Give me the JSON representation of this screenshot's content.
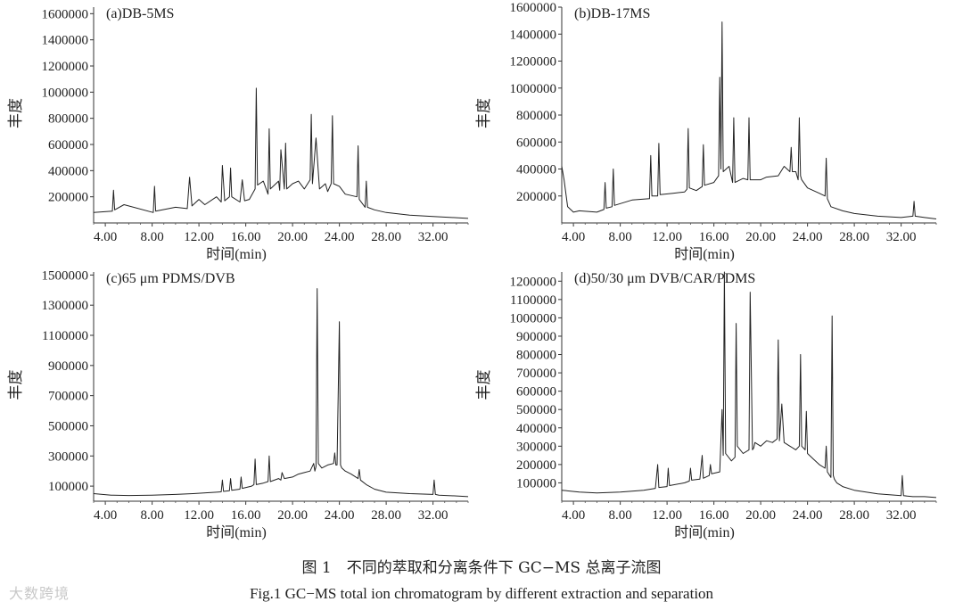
{
  "figure": {
    "caption_cn": "图 1　不同的萃取和分离条件下 GC−MS 总离子流图",
    "caption_en": "Fig.1    GC−MS total ion chromatogram by different extraction and separation",
    "watermark": "大数跨境"
  },
  "chart_data": [
    {
      "type": "line",
      "title": "(a)DB-5MS",
      "xlabel": "时间(min)",
      "ylabel": "丰度",
      "xlim": [
        3.0,
        35.0
      ],
      "ylim": [
        0,
        1650000
      ],
      "xticks": [
        "4.00",
        "8.00",
        "12.00",
        "16.00",
        "20.00",
        "24.00",
        "28.00",
        "32.00"
      ],
      "xtick_values": [
        4,
        8,
        12,
        16,
        20,
        24,
        28,
        32
      ],
      "yticks": [
        "200000",
        "400000",
        "600000",
        "800000",
        "1000000",
        "1200000",
        "1400000",
        "1600000"
      ],
      "ytick_values": [
        200000,
        400000,
        600000,
        800000,
        1000000,
        1200000,
        1400000,
        1600000
      ],
      "grid": false,
      "series": [
        {
          "color": "#222222",
          "x": [
            3.0,
            4.6,
            4.7,
            4.8,
            5.6,
            8.1,
            8.2,
            8.3,
            10.0,
            11.0,
            11.2,
            11.4,
            12.0,
            12.5,
            13.5,
            13.9,
            14.0,
            14.2,
            14.6,
            14.7,
            14.8,
            15.5,
            15.7,
            15.9,
            16.3,
            16.8,
            16.9,
            17.0,
            17.5,
            17.9,
            18.0,
            18.1,
            18.8,
            18.9,
            19.0,
            19.3,
            19.4,
            19.5,
            20.0,
            20.5,
            21.0,
            21.5,
            21.6,
            21.7,
            22.0,
            22.3,
            22.8,
            23.0,
            23.3,
            23.4,
            23.5,
            24.0,
            24.5,
            25.5,
            25.6,
            25.7,
            26.2,
            26.3,
            26.4,
            27.0,
            28.0,
            30.0,
            32.0,
            34.0,
            35.0
          ],
          "y": [
            80000,
            90000,
            250000,
            100000,
            140000,
            80000,
            280000,
            90000,
            120000,
            110000,
            350000,
            130000,
            180000,
            140000,
            200000,
            160000,
            440000,
            170000,
            200000,
            420000,
            200000,
            160000,
            330000,
            170000,
            180000,
            260000,
            1030000,
            290000,
            320000,
            220000,
            720000,
            260000,
            320000,
            250000,
            560000,
            260000,
            610000,
            260000,
            300000,
            320000,
            260000,
            330000,
            830000,
            300000,
            650000,
            260000,
            300000,
            240000,
            300000,
            820000,
            300000,
            280000,
            220000,
            200000,
            590000,
            180000,
            120000,
            320000,
            120000,
            100000,
            80000,
            60000,
            50000,
            40000,
            35000
          ]
        }
      ]
    },
    {
      "type": "line",
      "title": "(b)DB-17MS",
      "xlabel": "时间(min)",
      "ylabel": "丰度",
      "xlim": [
        3.0,
        35.0
      ],
      "ylim": [
        0,
        1600000
      ],
      "xticks": [
        "4.00",
        "8.00",
        "12.00",
        "16.00",
        "20.00",
        "24.00",
        "28.00",
        "32.00"
      ],
      "xtick_values": [
        4,
        8,
        12,
        16,
        20,
        24,
        28,
        32
      ],
      "yticks": [
        "200000",
        "400000",
        "600000",
        "800000",
        "1000000",
        "1200000",
        "1400000",
        "1600000"
      ],
      "ytick_values": [
        200000,
        400000,
        600000,
        800000,
        1000000,
        1200000,
        1400000,
        1600000
      ],
      "grid": false,
      "series": [
        {
          "color": "#222222",
          "x": [
            3.0,
            3.2,
            3.5,
            4.0,
            4.5,
            6.0,
            6.6,
            6.7,
            6.8,
            7.3,
            7.4,
            7.5,
            9.0,
            10.5,
            10.6,
            10.7,
            11.2,
            11.3,
            11.4,
            12.5,
            13.5,
            13.7,
            13.8,
            13.9,
            14.5,
            15.0,
            15.1,
            15.2,
            16.0,
            16.4,
            16.5,
            16.6,
            16.7,
            16.8,
            17.3,
            17.6,
            17.7,
            17.8,
            18.5,
            18.9,
            19.0,
            19.1,
            20.0,
            20.5,
            21.5,
            22.0,
            22.5,
            22.6,
            22.7,
            23.0,
            23.2,
            23.3,
            23.4,
            23.5,
            24.0,
            25.0,
            25.5,
            25.6,
            25.7,
            26.0,
            27.0,
            28.0,
            30.0,
            32.0,
            33.0,
            33.1,
            33.2,
            34.0,
            35.0
          ],
          "y": [
            420000,
            320000,
            120000,
            80000,
            90000,
            80000,
            100000,
            300000,
            110000,
            120000,
            400000,
            130000,
            170000,
            180000,
            500000,
            200000,
            200000,
            590000,
            210000,
            220000,
            230000,
            250000,
            700000,
            260000,
            240000,
            270000,
            580000,
            280000,
            300000,
            350000,
            1080000,
            400000,
            1490000,
            380000,
            420000,
            300000,
            780000,
            300000,
            330000,
            320000,
            780000,
            320000,
            320000,
            340000,
            350000,
            420000,
            380000,
            560000,
            380000,
            380000,
            320000,
            780000,
            350000,
            320000,
            260000,
            220000,
            200000,
            480000,
            180000,
            120000,
            90000,
            70000,
            50000,
            40000,
            50000,
            160000,
            50000,
            40000,
            30000
          ]
        }
      ]
    },
    {
      "type": "line",
      "title": "(c)65 μm PDMS/DVB",
      "xlabel": "时间(min)",
      "ylabel": "丰度",
      "xlim": [
        3.0,
        35.0
      ],
      "ylim": [
        0,
        1520000
      ],
      "xticks": [
        "4.00",
        "8.00",
        "12.00",
        "16.00",
        "20.00",
        "24.00",
        "28.00",
        "32.00"
      ],
      "xtick_values": [
        4,
        8,
        12,
        16,
        20,
        24,
        28,
        32
      ],
      "yticks": [
        "100000",
        "300000",
        "500000",
        "700000",
        "900000",
        "1100000",
        "1300000",
        "1500000"
      ],
      "ytick_values": [
        100000,
        300000,
        500000,
        700000,
        900000,
        1100000,
        1300000,
        1500000
      ],
      "grid": false,
      "series": [
        {
          "color": "#222222",
          "x": [
            3.0,
            4.5,
            6.0,
            8.0,
            10.0,
            11.5,
            13.5,
            13.9,
            14.0,
            14.1,
            14.6,
            14.7,
            14.8,
            15.5,
            15.6,
            15.7,
            16.5,
            16.7,
            16.8,
            16.9,
            17.5,
            17.9,
            18.0,
            18.1,
            18.8,
            19.0,
            19.1,
            19.3,
            20.0,
            20.5,
            21.0,
            21.5,
            21.8,
            21.9,
            22.0,
            22.1,
            22.2,
            22.5,
            23.0,
            23.5,
            23.6,
            23.7,
            23.8,
            24.0,
            24.1,
            24.2,
            24.5,
            25.0,
            25.6,
            25.7,
            25.8,
            26.3,
            27.0,
            28.0,
            30.0,
            32.0,
            32.1,
            32.2,
            32.5,
            34.0,
            35.0
          ],
          "y": [
            50000,
            40000,
            38000,
            40000,
            45000,
            50000,
            60000,
            62000,
            140000,
            65000,
            70000,
            150000,
            72000,
            80000,
            160000,
            85000,
            100000,
            110000,
            280000,
            110000,
            120000,
            130000,
            300000,
            130000,
            150000,
            140000,
            190000,
            150000,
            160000,
            180000,
            190000,
            200000,
            250000,
            200000,
            230000,
            1410000,
            250000,
            220000,
            240000,
            250000,
            320000,
            240000,
            240000,
            1190000,
            240000,
            220000,
            200000,
            180000,
            150000,
            210000,
            140000,
            110000,
            80000,
            60000,
            50000,
            45000,
            140000,
            45000,
            40000,
            35000,
            30000
          ]
        }
      ]
    },
    {
      "type": "line",
      "title": "(d)50/30 μm DVB/CAR/PDMS",
      "xlabel": "时间(min)",
      "ylabel": "丰度",
      "xlim": [
        3.0,
        35.0
      ],
      "ylim": [
        0,
        1250000
      ],
      "xticks": [
        "4.00",
        "8.00",
        "12.00",
        "16.00",
        "20.00",
        "24.00",
        "28.00",
        "32.00"
      ],
      "xtick_values": [
        4,
        8,
        12,
        16,
        20,
        24,
        28,
        32
      ],
      "yticks": [
        "100000",
        "200000",
        "300000",
        "400000",
        "500000",
        "600000",
        "700000",
        "800000",
        "900000",
        "1000000",
        "1100000",
        "1200000"
      ],
      "ytick_values": [
        100000,
        200000,
        300000,
        400000,
        500000,
        600000,
        700000,
        800000,
        900000,
        1000000,
        1100000,
        1200000
      ],
      "grid": false,
      "series": [
        {
          "color": "#222222",
          "x": [
            3.0,
            4.5,
            6.0,
            8.0,
            10.0,
            11.0,
            11.2,
            11.3,
            12.0,
            12.1,
            12.2,
            13.5,
            13.9,
            14.0,
            14.1,
            14.8,
            15.0,
            15.1,
            15.6,
            15.7,
            15.8,
            16.5,
            16.7,
            16.8,
            16.9,
            17.0,
            17.5,
            17.8,
            17.9,
            18.0,
            18.5,
            19.0,
            19.1,
            19.3,
            19.4,
            19.5,
            20.0,
            20.5,
            21.0,
            21.4,
            21.5,
            21.6,
            21.8,
            22.0,
            22.5,
            23.0,
            23.3,
            23.4,
            23.5,
            23.8,
            23.9,
            24.0,
            24.5,
            25.0,
            25.5,
            25.6,
            25.7,
            26.0,
            26.1,
            26.2,
            26.3,
            26.5,
            27.0,
            28.0,
            30.0,
            32.0,
            32.1,
            32.2,
            33.0,
            34.0,
            35.0
          ],
          "y": [
            60000,
            50000,
            45000,
            50000,
            60000,
            70000,
            200000,
            75000,
            80000,
            180000,
            85000,
            100000,
            110000,
            180000,
            115000,
            120000,
            250000,
            125000,
            140000,
            200000,
            150000,
            160000,
            500000,
            250000,
            1250000,
            260000,
            220000,
            240000,
            970000,
            300000,
            260000,
            280000,
            1140000,
            280000,
            290000,
            320000,
            300000,
            330000,
            320000,
            340000,
            880000,
            330000,
            530000,
            320000,
            300000,
            280000,
            300000,
            800000,
            300000,
            280000,
            490000,
            260000,
            230000,
            200000,
            180000,
            300000,
            160000,
            130000,
            1010000,
            140000,
            120000,
            100000,
            80000,
            60000,
            40000,
            30000,
            140000,
            30000,
            25000,
            25000,
            20000
          ]
        }
      ]
    }
  ]
}
